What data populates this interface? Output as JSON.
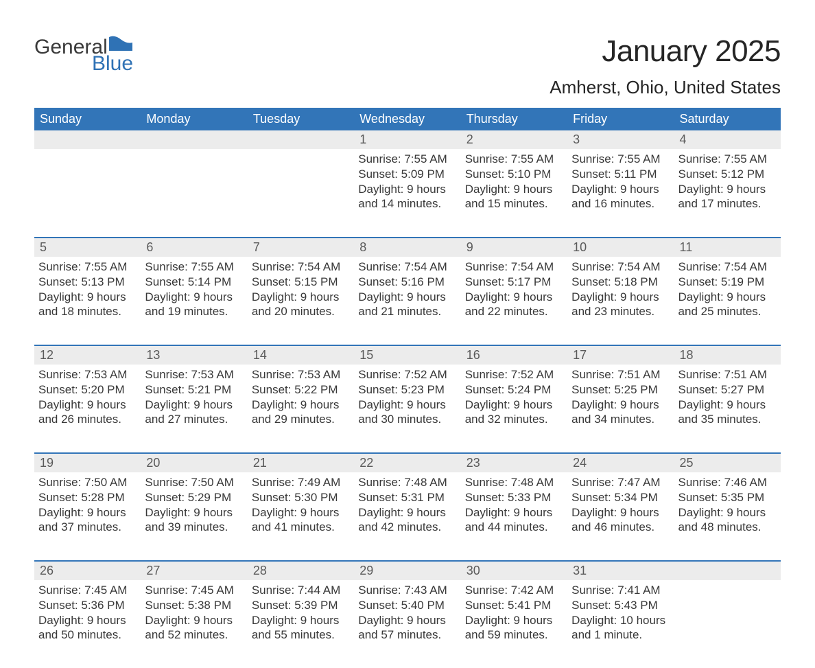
{
  "logo": {
    "word1": "General",
    "word2": "Blue"
  },
  "title": "January 2025",
  "subtitle": "Amherst, Ohio, United States",
  "colors": {
    "header_bg": "#3275b8",
    "header_text": "#ffffff",
    "daynum_bg": "#ececec",
    "daynum_text": "#5a5a5a",
    "body_text": "#383838",
    "week_border": "#3275b8",
    "page_bg": "#ffffff",
    "logo_accent": "#2f72b5",
    "logo_text": "#3a3a3a"
  },
  "typography": {
    "title_fontsize": 44,
    "subtitle_fontsize": 26,
    "header_fontsize": 18,
    "daynum_fontsize": 18,
    "body_fontsize": 17
  },
  "columns": [
    "Sunday",
    "Monday",
    "Tuesday",
    "Wednesday",
    "Thursday",
    "Friday",
    "Saturday"
  ],
  "weeks": [
    [
      {
        "n": "",
        "lines": []
      },
      {
        "n": "",
        "lines": []
      },
      {
        "n": "",
        "lines": []
      },
      {
        "n": "1",
        "lines": [
          "Sunrise: 7:55 AM",
          "Sunset: 5:09 PM",
          "Daylight: 9 hours",
          "and 14 minutes."
        ]
      },
      {
        "n": "2",
        "lines": [
          "Sunrise: 7:55 AM",
          "Sunset: 5:10 PM",
          "Daylight: 9 hours",
          "and 15 minutes."
        ]
      },
      {
        "n": "3",
        "lines": [
          "Sunrise: 7:55 AM",
          "Sunset: 5:11 PM",
          "Daylight: 9 hours",
          "and 16 minutes."
        ]
      },
      {
        "n": "4",
        "lines": [
          "Sunrise: 7:55 AM",
          "Sunset: 5:12 PM",
          "Daylight: 9 hours",
          "and 17 minutes."
        ]
      }
    ],
    [
      {
        "n": "5",
        "lines": [
          "Sunrise: 7:55 AM",
          "Sunset: 5:13 PM",
          "Daylight: 9 hours",
          "and 18 minutes."
        ]
      },
      {
        "n": "6",
        "lines": [
          "Sunrise: 7:55 AM",
          "Sunset: 5:14 PM",
          "Daylight: 9 hours",
          "and 19 minutes."
        ]
      },
      {
        "n": "7",
        "lines": [
          "Sunrise: 7:54 AM",
          "Sunset: 5:15 PM",
          "Daylight: 9 hours",
          "and 20 minutes."
        ]
      },
      {
        "n": "8",
        "lines": [
          "Sunrise: 7:54 AM",
          "Sunset: 5:16 PM",
          "Daylight: 9 hours",
          "and 21 minutes."
        ]
      },
      {
        "n": "9",
        "lines": [
          "Sunrise: 7:54 AM",
          "Sunset: 5:17 PM",
          "Daylight: 9 hours",
          "and 22 minutes."
        ]
      },
      {
        "n": "10",
        "lines": [
          "Sunrise: 7:54 AM",
          "Sunset: 5:18 PM",
          "Daylight: 9 hours",
          "and 23 minutes."
        ]
      },
      {
        "n": "11",
        "lines": [
          "Sunrise: 7:54 AM",
          "Sunset: 5:19 PM",
          "Daylight: 9 hours",
          "and 25 minutes."
        ]
      }
    ],
    [
      {
        "n": "12",
        "lines": [
          "Sunrise: 7:53 AM",
          "Sunset: 5:20 PM",
          "Daylight: 9 hours",
          "and 26 minutes."
        ]
      },
      {
        "n": "13",
        "lines": [
          "Sunrise: 7:53 AM",
          "Sunset: 5:21 PM",
          "Daylight: 9 hours",
          "and 27 minutes."
        ]
      },
      {
        "n": "14",
        "lines": [
          "Sunrise: 7:53 AM",
          "Sunset: 5:22 PM",
          "Daylight: 9 hours",
          "and 29 minutes."
        ]
      },
      {
        "n": "15",
        "lines": [
          "Sunrise: 7:52 AM",
          "Sunset: 5:23 PM",
          "Daylight: 9 hours",
          "and 30 minutes."
        ]
      },
      {
        "n": "16",
        "lines": [
          "Sunrise: 7:52 AM",
          "Sunset: 5:24 PM",
          "Daylight: 9 hours",
          "and 32 minutes."
        ]
      },
      {
        "n": "17",
        "lines": [
          "Sunrise: 7:51 AM",
          "Sunset: 5:25 PM",
          "Daylight: 9 hours",
          "and 34 minutes."
        ]
      },
      {
        "n": "18",
        "lines": [
          "Sunrise: 7:51 AM",
          "Sunset: 5:27 PM",
          "Daylight: 9 hours",
          "and 35 minutes."
        ]
      }
    ],
    [
      {
        "n": "19",
        "lines": [
          "Sunrise: 7:50 AM",
          "Sunset: 5:28 PM",
          "Daylight: 9 hours",
          "and 37 minutes."
        ]
      },
      {
        "n": "20",
        "lines": [
          "Sunrise: 7:50 AM",
          "Sunset: 5:29 PM",
          "Daylight: 9 hours",
          "and 39 minutes."
        ]
      },
      {
        "n": "21",
        "lines": [
          "Sunrise: 7:49 AM",
          "Sunset: 5:30 PM",
          "Daylight: 9 hours",
          "and 41 minutes."
        ]
      },
      {
        "n": "22",
        "lines": [
          "Sunrise: 7:48 AM",
          "Sunset: 5:31 PM",
          "Daylight: 9 hours",
          "and 42 minutes."
        ]
      },
      {
        "n": "23",
        "lines": [
          "Sunrise: 7:48 AM",
          "Sunset: 5:33 PM",
          "Daylight: 9 hours",
          "and 44 minutes."
        ]
      },
      {
        "n": "24",
        "lines": [
          "Sunrise: 7:47 AM",
          "Sunset: 5:34 PM",
          "Daylight: 9 hours",
          "and 46 minutes."
        ]
      },
      {
        "n": "25",
        "lines": [
          "Sunrise: 7:46 AM",
          "Sunset: 5:35 PM",
          "Daylight: 9 hours",
          "and 48 minutes."
        ]
      }
    ],
    [
      {
        "n": "26",
        "lines": [
          "Sunrise: 7:45 AM",
          "Sunset: 5:36 PM",
          "Daylight: 9 hours",
          "and 50 minutes."
        ]
      },
      {
        "n": "27",
        "lines": [
          "Sunrise: 7:45 AM",
          "Sunset: 5:38 PM",
          "Daylight: 9 hours",
          "and 52 minutes."
        ]
      },
      {
        "n": "28",
        "lines": [
          "Sunrise: 7:44 AM",
          "Sunset: 5:39 PM",
          "Daylight: 9 hours",
          "and 55 minutes."
        ]
      },
      {
        "n": "29",
        "lines": [
          "Sunrise: 7:43 AM",
          "Sunset: 5:40 PM",
          "Daylight: 9 hours",
          "and 57 minutes."
        ]
      },
      {
        "n": "30",
        "lines": [
          "Sunrise: 7:42 AM",
          "Sunset: 5:41 PM",
          "Daylight: 9 hours",
          "and 59 minutes."
        ]
      },
      {
        "n": "31",
        "lines": [
          "Sunrise: 7:41 AM",
          "Sunset: 5:43 PM",
          "Daylight: 10 hours",
          "and 1 minute."
        ]
      },
      {
        "n": "",
        "lines": []
      }
    ]
  ]
}
